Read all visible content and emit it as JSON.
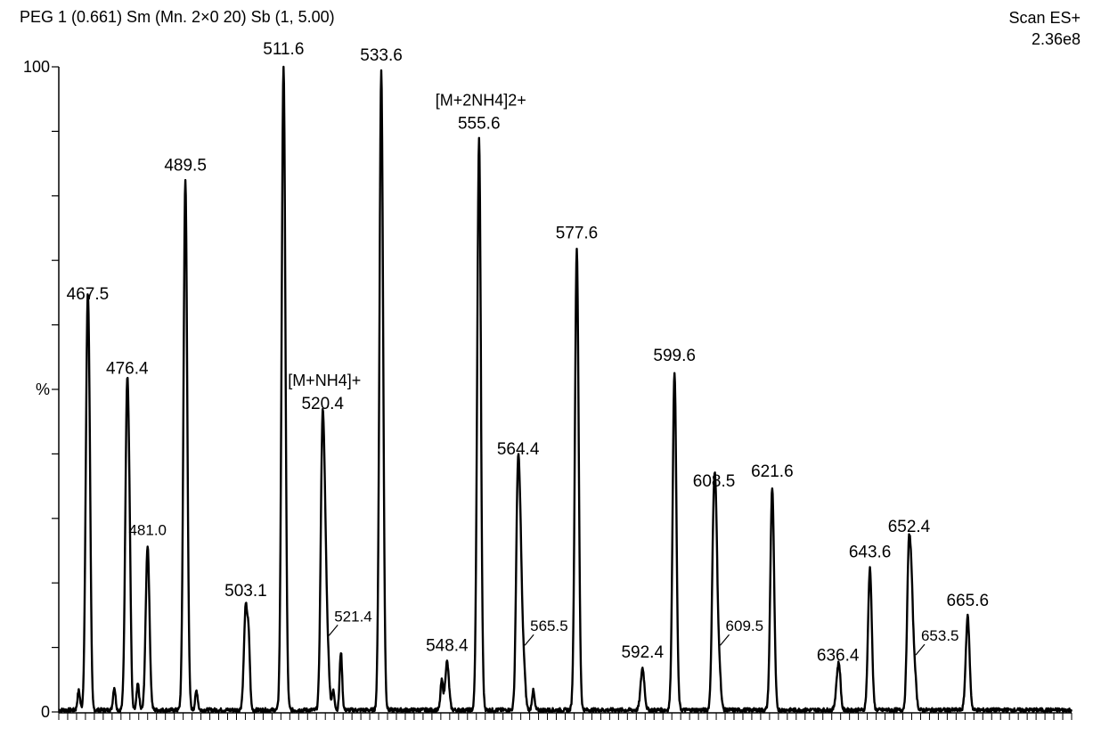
{
  "header": {
    "left": "PEG 1 (0.661) Sm (Mn. 2×0 20) Sb (1, 5.00)",
    "right_line1": "Scan ES+",
    "right_line2": "2.36e8"
  },
  "chart_data": {
    "type": "line",
    "title": "PEG 1 (0.661) Sm (Mn. 2×0 20) Sb (1, 5.00)",
    "xlabel": "",
    "ylabel": "%",
    "ylim": [
      0,
      100
    ],
    "xlim": [
      461,
      689
    ],
    "y_ticks": [
      {
        "value": 100,
        "label": "100"
      },
      {
        "value": 50,
        "label": "%"
      },
      {
        "value": 0,
        "label": "0"
      }
    ],
    "grid": false,
    "legend": "none",
    "line_color": "#000000",
    "labeled_peaks": [
      {
        "mz": 467.5,
        "intensity": 62,
        "label": "467.5"
      },
      {
        "mz": 476.4,
        "intensity": 50.5,
        "label": "476.4"
      },
      {
        "mz": 481.0,
        "intensity": 25.5,
        "label": "481.0"
      },
      {
        "mz": 489.5,
        "intensity": 82,
        "label": "489.5"
      },
      {
        "mz": 503.1,
        "intensity": 16,
        "label": "503.1"
      },
      {
        "mz": 511.6,
        "intensity": 100,
        "label": "511.6"
      },
      {
        "mz": 520.4,
        "intensity": 45,
        "label": "520.4",
        "annotation": "[M+NH4]+"
      },
      {
        "mz": 521.4,
        "intensity": 11,
        "label": "521.4"
      },
      {
        "mz": 533.6,
        "intensity": 99,
        "label": "533.6"
      },
      {
        "mz": 548.4,
        "intensity": 7.5,
        "label": "548.4"
      },
      {
        "mz": 555.6,
        "intensity": 88.5,
        "label": "555.6",
        "annotation": "[M+2NH4]2+"
      },
      {
        "mz": 564.4,
        "intensity": 38,
        "label": "564.4"
      },
      {
        "mz": 565.5,
        "intensity": 9.5,
        "label": "565.5"
      },
      {
        "mz": 577.6,
        "intensity": 71.5,
        "label": "577.6"
      },
      {
        "mz": 592.4,
        "intensity": 6.5,
        "label": "592.4"
      },
      {
        "mz": 599.6,
        "intensity": 52.5,
        "label": "599.6"
      },
      {
        "mz": 608.5,
        "intensity": 33,
        "label": "608.5"
      },
      {
        "mz": 609.5,
        "intensity": 9.5,
        "label": "609.5"
      },
      {
        "mz": 621.6,
        "intensity": 34.5,
        "label": "621.6"
      },
      {
        "mz": 636.4,
        "intensity": 6,
        "label": "636.4"
      },
      {
        "mz": 643.6,
        "intensity": 22,
        "label": "643.6"
      },
      {
        "mz": 652.4,
        "intensity": 26,
        "label": "652.4"
      },
      {
        "mz": 653.5,
        "intensity": 8,
        "label": "653.5"
      },
      {
        "mz": 665.6,
        "intensity": 14.5,
        "label": "665.6"
      }
    ],
    "minor_peaks": [
      {
        "mz": 465.5,
        "intensity": 3
      },
      {
        "mz": 468.0,
        "intensity": 11
      },
      {
        "mz": 473.5,
        "intensity": 3.5
      },
      {
        "mz": 477.0,
        "intensity": 11.5
      },
      {
        "mz": 478.8,
        "intensity": 4
      },
      {
        "mz": 492.0,
        "intensity": 3
      },
      {
        "mz": 503.8,
        "intensity": 8
      },
      {
        "mz": 521.0,
        "intensity": 8
      },
      {
        "mz": 522.8,
        "intensity": 3
      },
      {
        "mz": 524.5,
        "intensity": 9
      },
      {
        "mz": 547.2,
        "intensity": 4.5
      },
      {
        "mz": 565.0,
        "intensity": 10
      },
      {
        "mz": 567.8,
        "intensity": 3
      },
      {
        "mz": 609.0,
        "intensity": 10
      },
      {
        "mz": 636.8,
        "intensity": 2.5
      },
      {
        "mz": 653.0,
        "intensity": 8
      }
    ]
  }
}
